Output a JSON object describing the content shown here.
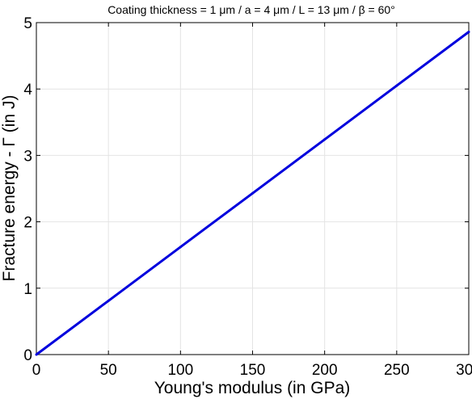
{
  "chart_data": {
    "type": "line",
    "title": "Coating thickness = 1 μm / a = 4 μm / L = 13 μm / β = 60°",
    "xlabel": "Young's modulus (in GPa)",
    "ylabel": "Fracture energy - Γ (in J)",
    "xlim": [
      0,
      300
    ],
    "ylim": [
      0,
      5
    ],
    "xticks": [
      0,
      50,
      100,
      150,
      200,
      250,
      300
    ],
    "yticks": [
      0,
      1,
      2,
      3,
      4,
      5
    ],
    "grid": true,
    "series": [
      {
        "x": [
          0,
          50,
          100,
          150,
          200,
          250,
          300
        ],
        "y": [
          0,
          0.81,
          1.62,
          2.43,
          3.24,
          4.05,
          4.86
        ],
        "color": "#0000dd"
      }
    ]
  }
}
